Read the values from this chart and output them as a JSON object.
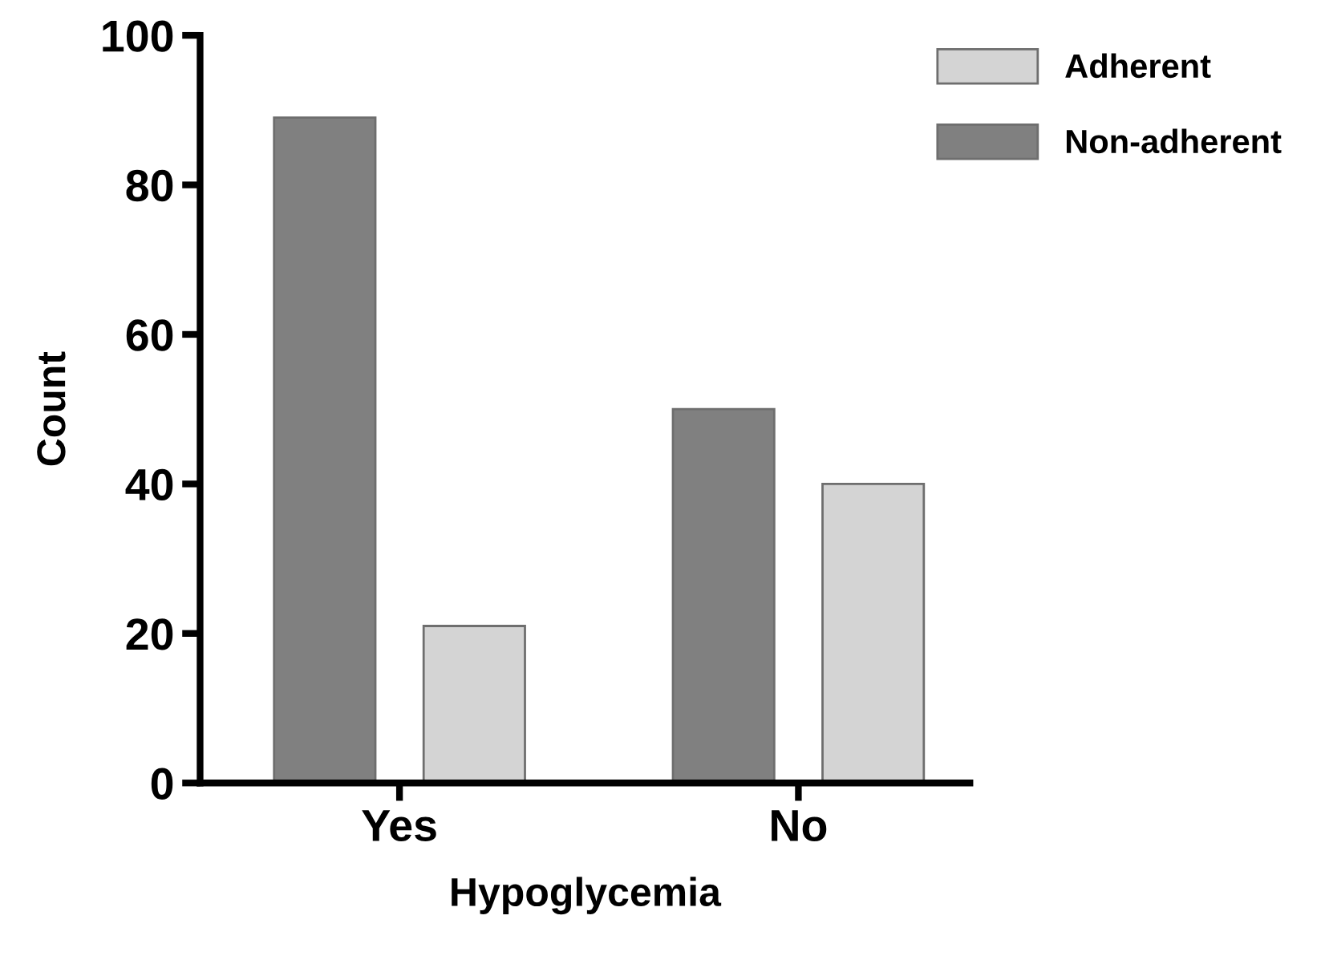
{
  "chart_data": {
    "type": "bar",
    "xlabel": "Hypoglycemia",
    "ylabel": "Count",
    "categories": [
      "Yes",
      "No"
    ],
    "series": [
      {
        "name": "Non-adherent",
        "color": "#808080",
        "values": [
          89,
          50
        ]
      },
      {
        "name": "Adherent",
        "color": "#d4d4d4",
        "values": [
          21,
          40
        ]
      }
    ],
    "ylim": [
      0,
      100
    ],
    "yticks": [
      0,
      20,
      40,
      60,
      80,
      100
    ],
    "grid": false,
    "legend": "top right"
  }
}
